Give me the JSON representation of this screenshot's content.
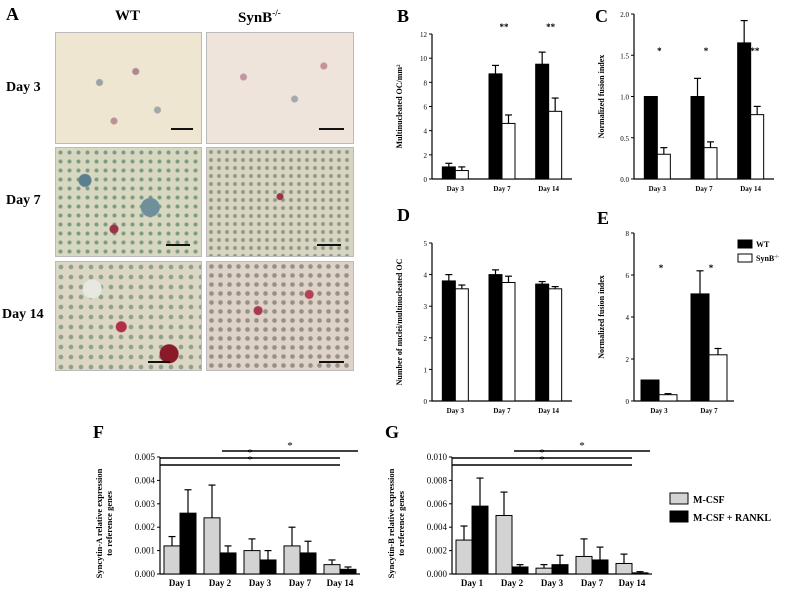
{
  "panels": {
    "A": {
      "letter": "A",
      "columns": [
        "WT",
        "SynB"
      ],
      "column_superscript": "-/-",
      "rows": [
        "Day 3",
        "Day 7",
        "Day 14"
      ]
    },
    "B": "B",
    "C": "C",
    "D": "D",
    "E": "E",
    "F": "F",
    "G": "G"
  },
  "colors": {
    "wt": "#000000",
    "synb": "#ffffff",
    "mcsf": "#d3d3d3",
    "mcsf_rankl": "#000000"
  },
  "chart_data": [
    {
      "id": "B",
      "type": "bar",
      "categories": [
        "Day 3",
        "Day 7",
        "Day 14"
      ],
      "series": [
        {
          "values": [
            1.0,
            8.7,
            9.5
          ],
          "err": [
            0.3,
            0.7,
            1.0
          ],
          "color": "#000000"
        },
        {
          "values": [
            0.7,
            4.6,
            5.6
          ],
          "err": [
            0.3,
            0.7,
            1.1
          ],
          "color": "#ffffff"
        }
      ],
      "ylabel": "Multinucleated OC/mm²",
      "ylim": [
        0,
        12
      ],
      "yticks": [
        "0",
        "2",
        "4",
        "6",
        "8",
        "10",
        "12"
      ],
      "annotations": [
        "",
        "**",
        "**"
      ]
    },
    {
      "id": "C",
      "type": "bar",
      "categories": [
        "Day 3",
        "Day 7",
        "Day 14"
      ],
      "series": [
        {
          "values": [
            1.0,
            1.0,
            1.65
          ],
          "err": [
            0.0,
            0.22,
            0.27
          ],
          "color": "#000000"
        },
        {
          "values": [
            0.3,
            0.38,
            0.78
          ],
          "err": [
            0.08,
            0.07,
            0.1
          ],
          "color": "#ffffff"
        }
      ],
      "ylabel": "Normalized fusion index",
      "ylim": [
        0,
        2.0
      ],
      "yticks": [
        "0.0",
        "0.5",
        "1.0",
        "1.5",
        "2.0"
      ],
      "annotations": [
        "*",
        "*",
        "***"
      ]
    },
    {
      "id": "D",
      "type": "bar",
      "categories": [
        "Day 3",
        "Day 7",
        "Day 14"
      ],
      "series": [
        {
          "values": [
            3.8,
            4.0,
            3.7
          ],
          "err": [
            0.2,
            0.15,
            0.08
          ],
          "color": "#000000"
        },
        {
          "values": [
            3.55,
            3.75,
            3.55
          ],
          "err": [
            0.12,
            0.2,
            0.07
          ],
          "color": "#ffffff"
        }
      ],
      "ylabel": "Number of nuclei/multinucleated OC",
      "ylim": [
        0,
        5
      ],
      "yticks": [
        "0",
        "1",
        "2",
        "3",
        "4",
        "5"
      ],
      "annotations": [
        "",
        "",
        ""
      ]
    },
    {
      "id": "E",
      "type": "bar",
      "categories": [
        "Day 3",
        "Day 7"
      ],
      "series": [
        {
          "name": "WT",
          "values": [
            1.0,
            5.1
          ],
          "err": [
            0.0,
            1.1
          ],
          "color": "#000000"
        },
        {
          "name": "SynB",
          "values": [
            0.3,
            2.2
          ],
          "err": [
            0.05,
            0.3
          ],
          "color": "#ffffff"
        }
      ],
      "legend_superscript": "-/-",
      "ylabel": "Normalized fusion index",
      "ylim": [
        0,
        8
      ],
      "yticks": [
        "0",
        "2",
        "4",
        "6",
        "8"
      ],
      "annotations": [
        "*",
        "*"
      ]
    },
    {
      "id": "F",
      "type": "bar",
      "categories": [
        "Day 1",
        "Day 2",
        "Day 3",
        "Day 7",
        "Day 14"
      ],
      "series": [
        {
          "values": [
            0.0012,
            0.0024,
            0.001,
            0.0012,
            0.0004
          ],
          "err": [
            0.0004,
            0.0014,
            0.0005,
            0.0008,
            0.0002
          ],
          "color": "#d3d3d3"
        },
        {
          "values": [
            0.0026,
            0.0009,
            0.0006,
            0.0009,
            0.0002
          ],
          "err": [
            0.001,
            0.0003,
            0.0004,
            0.0005,
            0.0001
          ],
          "color": "#000000"
        }
      ],
      "ylabel_lines": [
        "Syncytin-A relative expression",
        "to reference genes"
      ],
      "ylim": [
        0,
        0.005
      ],
      "yticks": [
        "0.000",
        "0.001",
        "0.002",
        "0.003",
        "0.004",
        "0.005"
      ],
      "brackets": [
        {
          "from": 1,
          "to": 4,
          "label": "*"
        },
        {
          "from": 0,
          "to": 4,
          "label": "*"
        },
        {
          "from": 0,
          "to": 4,
          "label": "*"
        }
      ]
    },
    {
      "id": "G",
      "type": "bar",
      "categories": [
        "Day 1",
        "Day 2",
        "Day 3",
        "Day 7",
        "Day 14"
      ],
      "series": [
        {
          "name": "M-CSF",
          "values": [
            0.0029,
            0.005,
            0.0005,
            0.0015,
            0.0009
          ],
          "err": [
            0.0012,
            0.002,
            0.0003,
            0.0015,
            0.0008
          ],
          "color": "#d3d3d3"
        },
        {
          "name": "M-CSF + RANKL",
          "values": [
            0.0058,
            0.0006,
            0.0008,
            0.0012,
            0.0001
          ],
          "err": [
            0.0024,
            0.0002,
            0.0008,
            0.0011,
            0.0001
          ],
          "color": "#000000"
        }
      ],
      "ylabel_lines": [
        "Syncytin-B relative expression",
        "to reference genes"
      ],
      "ylim": [
        0,
        0.01
      ],
      "yticks": [
        "0.000",
        "0.002",
        "0.004",
        "0.006",
        "0.008",
        "0.010"
      ],
      "brackets": [
        {
          "from": 1,
          "to": 4,
          "label": "*"
        },
        {
          "from": 0,
          "to": 4,
          "label": "*"
        },
        {
          "from": 0,
          "to": 4,
          "label": "*"
        }
      ]
    }
  ]
}
